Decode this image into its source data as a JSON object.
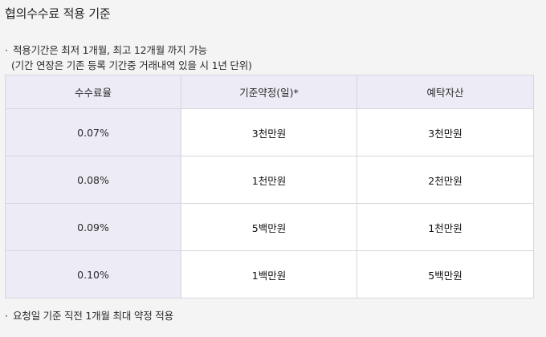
{
  "title": "협의수수료 적용 기준",
  "notes": {
    "bullet": "·",
    "period": "적용기간은 최저 1개월, 최고 12개월 까지 가능",
    "period_sub": "(기간 연장은 기존 등록 기간중 거래내역 있을 시 1년 단위)",
    "footer": "요청일 기준 직전 1개월 최대 약정 적용"
  },
  "table": {
    "headers": [
      "수수료율",
      "기준약정(일)*",
      "예탁자산"
    ],
    "rows": [
      {
        "rate": "0.07%",
        "contract": "3천만원",
        "assets": "3천만원"
      },
      {
        "rate": "0.08%",
        "contract": "1천만원",
        "assets": "2천만원"
      },
      {
        "rate": "0.09%",
        "contract": "5백만원",
        "assets": "1천만원"
      },
      {
        "rate": "0.10%",
        "contract": "1백만원",
        "assets": "5백만원"
      }
    ]
  }
}
